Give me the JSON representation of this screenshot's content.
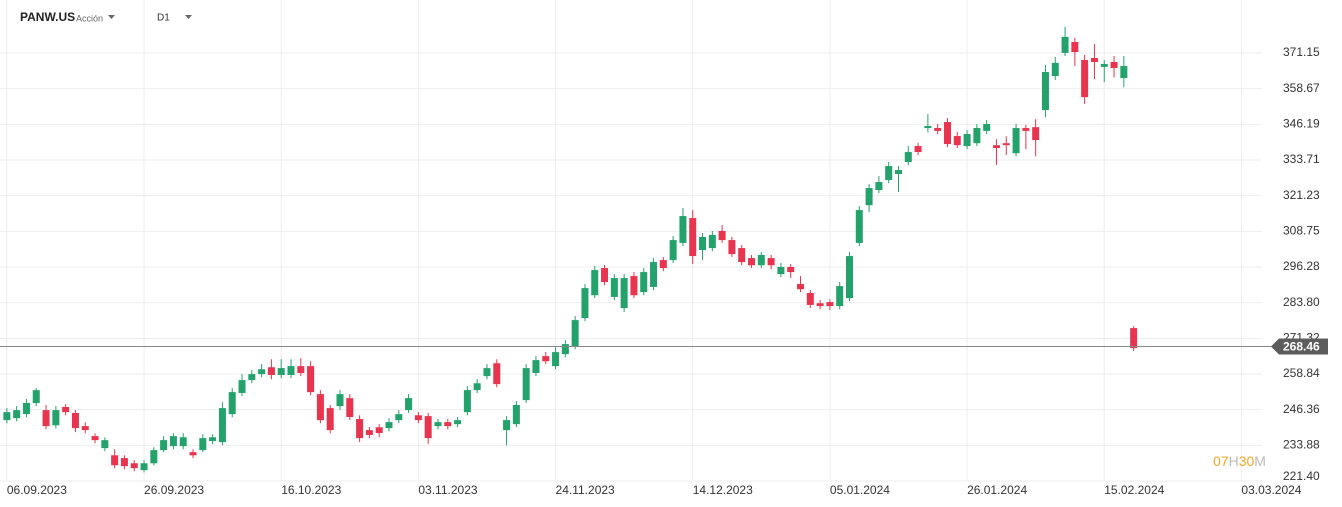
{
  "header": {
    "symbol": "PANW.US",
    "asset_type": "Acción",
    "timeframe": "D1"
  },
  "countdown": [
    "07",
    "H",
    "30",
    "M"
  ],
  "chart_data": {
    "type": "candlestick",
    "up_color": "#23a26c",
    "down_color": "#e8344e",
    "grid": true,
    "ylim": [
      221.4,
      389.7
    ],
    "xlim": [
      -0.7,
      128.1
    ],
    "yticks": [
      {
        "value": 221.4,
        "label": "221.40"
      },
      233.88,
      246.36,
      258.84,
      271.32,
      {
        "value": 283.8,
        "label": "283.80"
      },
      296.28,
      308.75,
      321.23,
      333.71,
      346.19,
      358.67,
      371.15
    ],
    "xticks": [
      {
        "value": 0,
        "label": "06.09.2023"
      },
      {
        "value": 14,
        "label": "26.09.2023"
      },
      {
        "value": 28,
        "label": "16.10.2023"
      },
      {
        "value": 42,
        "label": "03.11.2023"
      },
      {
        "value": 56,
        "label": "24.11.2023"
      },
      {
        "value": 70,
        "label": "14.12.2023"
      },
      {
        "value": 84,
        "label": "05.01.2024"
      },
      {
        "value": 98,
        "label": "26.01.2024"
      },
      {
        "value": 112,
        "label": "15.02.2024"
      },
      {
        "value": 126,
        "label": "03.03.2024"
      }
    ],
    "price_line": {
      "value": 268.46,
      "color": "#888888"
    },
    "open": [
      242.7,
      243.4,
      244.8,
      248.7,
      246.2,
      240.9,
      247.3,
      245.2,
      240.6,
      237.1,
      232.9,
      230.4,
      229.4,
      227.6,
      225.2,
      227.6,
      232.2,
      233.6,
      233.6,
      231.5,
      232.2,
      235.4,
      235.0,
      244.8,
      252.2,
      256.7,
      258.8,
      261.2,
      258.5,
      258.5,
      261.6,
      261.6,
      251.8,
      246.9,
      247.6,
      250.4,
      243.1,
      239.2,
      240.2,
      239.9,
      242.7,
      246.2,
      244.4,
      244.1,
      240.6,
      242.0,
      241.3,
      245.5,
      253.2,
      258.1,
      262.6,
      239.2,
      241.3,
      249.7,
      259.2,
      265.1,
      261.6,
      265.8,
      268.6,
      278.4,
      286.4,
      295.9,
      285.8,
      281.9,
      293.1,
      287.5,
      289.3,
      298.7,
      298.7,
      304.7,
      313.4,
      302.2,
      302.9,
      308.9,
      305.7,
      302.9,
      299.4,
      296.9,
      299.4,
      293.8,
      296.3,
      290.3,
      287.2,
      283.6,
      284.0,
      282.6,
      285.4,
      304.7,
      317.9,
      323.2,
      326.7,
      328.8,
      333.0,
      338.6,
      344.9,
      344.9,
      347.0,
      342.1,
      338.6,
      339.6,
      343.9,
      338.9,
      339.6,
      336.1,
      344.9,
      345.2,
      351.2,
      363.1,
      371.2,
      375.0,
      368.7,
      369.4,
      366.3,
      368.0,
      362.4,
      274.9
    ],
    "high": [
      246.9,
      247.6,
      250.1,
      253.9,
      248.0,
      247.6,
      248.3,
      246.2,
      241.9,
      238.1,
      236.7,
      232.5,
      230.4,
      228.7,
      228.7,
      233.2,
      237.1,
      238.1,
      238.1,
      232.5,
      237.8,
      237.8,
      249.0,
      253.9,
      258.8,
      260.2,
      262.3,
      264.0,
      264.0,
      264.0,
      264.4,
      263.3,
      253.2,
      248.0,
      253.2,
      251.8,
      244.4,
      240.3,
      241.3,
      243.4,
      246.2,
      251.8,
      245.5,
      245.2,
      243.1,
      243.1,
      243.8,
      254.6,
      257.0,
      262.3,
      264.0,
      244.1,
      249.4,
      262.3,
      265.1,
      266.5,
      268.2,
      270.7,
      279.1,
      290.3,
      296.6,
      297.0,
      293.8,
      293.8,
      294.5,
      295.9,
      299.4,
      299.8,
      307.1,
      316.9,
      316.2,
      308.2,
      308.9,
      311.0,
      306.8,
      304.0,
      300.5,
      301.5,
      300.5,
      297.7,
      297.3,
      293.1,
      288.2,
      284.7,
      285.0,
      291.0,
      301.5,
      317.6,
      325.3,
      328.1,
      333.0,
      331.6,
      338.6,
      339.7,
      349.8,
      346.3,
      348.4,
      343.5,
      344.2,
      346.3,
      347.7,
      341.0,
      342.0,
      346.3,
      346.0,
      348.0,
      367.0,
      369.8,
      380.3,
      376.5,
      370.5,
      374.3,
      368.7,
      370.1,
      370.1,
      275.6
    ],
    "low": [
      241.6,
      242.3,
      243.7,
      247.6,
      239.5,
      239.8,
      244.4,
      238.5,
      238.1,
      234.6,
      231.8,
      225.8,
      225.5,
      224.8,
      224.4,
      226.9,
      231.5,
      232.5,
      232.5,
      229.4,
      231.5,
      234.3,
      233.9,
      243.7,
      251.1,
      255.6,
      257.7,
      257.0,
      257.4,
      257.4,
      258.1,
      251.4,
      241.6,
      238.1,
      246.2,
      242.7,
      235.0,
      236.4,
      236.7,
      238.8,
      241.6,
      245.2,
      241.6,
      234.3,
      239.5,
      239.5,
      240.2,
      244.4,
      252.2,
      257.0,
      254.2,
      233.9,
      240.2,
      248.7,
      258.1,
      262.3,
      260.5,
      264.7,
      267.5,
      277.3,
      285.4,
      289.9,
      284.7,
      280.5,
      285.4,
      286.4,
      288.2,
      294.8,
      297.7,
      303.6,
      297.3,
      298.7,
      301.8,
      304.7,
      299.8,
      296.9,
      295.9,
      295.9,
      295.5,
      292.7,
      292.4,
      287.5,
      281.9,
      281.5,
      281.2,
      281.5,
      284.4,
      303.6,
      315.5,
      322.1,
      325.6,
      322.5,
      331.9,
      335.4,
      343.4,
      342.8,
      338.2,
      337.9,
      337.5,
      338.6,
      342.8,
      332.0,
      335.4,
      335.0,
      337.5,
      335.0,
      348.7,
      361.7,
      370.1,
      366.6,
      353.3,
      362.0,
      361.0,
      362.6,
      359.2,
      266.9
    ],
    "close": [
      245.5,
      246.2,
      248.7,
      253.2,
      240.6,
      246.2,
      245.5,
      239.9,
      239.2,
      235.7,
      235.7,
      226.9,
      226.6,
      225.9,
      227.6,
      232.2,
      235.7,
      237.1,
      236.7,
      230.4,
      236.4,
      236.7,
      246.9,
      252.5,
      256.7,
      258.8,
      260.5,
      258.5,
      260.9,
      261.6,
      259.2,
      252.5,
      242.7,
      239.2,
      251.8,
      243.8,
      236.4,
      237.5,
      238.2,
      242.0,
      244.8,
      250.4,
      242.7,
      236.4,
      242.0,
      240.6,
      242.7,
      253.2,
      255.6,
      260.9,
      255.3,
      242.7,
      248.0,
      260.9,
      263.7,
      263.3,
      266.5,
      269.3,
      277.7,
      288.9,
      295.2,
      291.0,
      292.4,
      292.4,
      286.4,
      294.5,
      298.0,
      295.9,
      305.7,
      314.1,
      300.1,
      306.8,
      307.5,
      305.7,
      300.8,
      298.0,
      296.9,
      300.5,
      296.9,
      296.3,
      294.5,
      288.5,
      283.0,
      282.6,
      282.6,
      289.6,
      300.1,
      316.2,
      323.9,
      326.0,
      331.6,
      330.2,
      336.5,
      336.5,
      345.6,
      343.9,
      339.3,
      338.9,
      342.8,
      344.9,
      346.3,
      337.9,
      338.9,
      344.9,
      343.9,
      340.7,
      364.5,
      367.7,
      376.8,
      371.5,
      355.7,
      368.0,
      367.3,
      365.9,
      366.6,
      267.9
    ]
  }
}
